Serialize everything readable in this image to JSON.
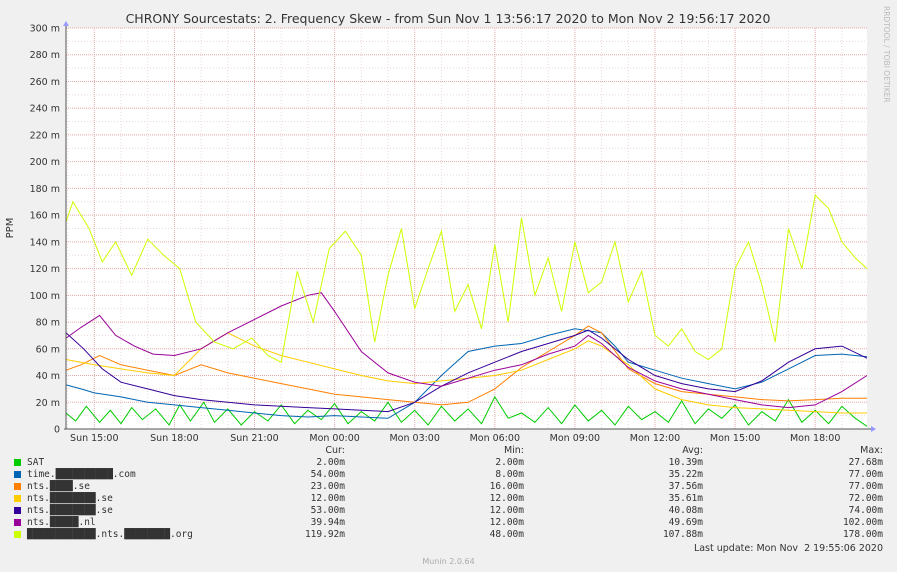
{
  "chart_data": {
    "type": "line",
    "title": "CHRONY Sourcestats: 2. Frequency Skew - from Sun Nov  1 13:56:17 2020 to Mon Nov  2 19:56:17 2020",
    "ylabel": "PPM",
    "watermark": "RRDTOOL / TOBI OETIKER",
    "ylim": [
      0,
      300
    ],
    "y_ticks": [
      "0",
      "20 m",
      "40 m",
      "60 m",
      "80 m",
      "100 m",
      "120 m",
      "140 m",
      "160 m",
      "180 m",
      "200 m",
      "220 m",
      "240 m",
      "260 m",
      "280 m",
      "300 m"
    ],
    "x_ticks": [
      "Sun 15:00",
      "Sun 18:00",
      "Sun 21:00",
      "Mon 00:00",
      "Mon 03:00",
      "Mon 06:00",
      "Mon 09:00",
      "Mon 12:00",
      "Mon 15:00",
      "Mon 18:00"
    ],
    "x_range_hours": [
      13.94,
      43.94
    ],
    "grid": true,
    "legend_columns": [
      "Cur:",
      "Min:",
      "Avg:",
      "Max:"
    ],
    "series": [
      {
        "name": "SAT",
        "color": "#00cc00",
        "cur": "2.00m",
        "min": "2.00m",
        "avg": "10.39m",
        "max": "27.68m",
        "points": [
          [
            13.94,
            12
          ],
          [
            14.3,
            6
          ],
          [
            14.7,
            17
          ],
          [
            15.2,
            5
          ],
          [
            15.6,
            14
          ],
          [
            16.0,
            4
          ],
          [
            16.4,
            16
          ],
          [
            16.8,
            7
          ],
          [
            17.3,
            15
          ],
          [
            17.8,
            3
          ],
          [
            18.2,
            18
          ],
          [
            18.6,
            6
          ],
          [
            19.1,
            20
          ],
          [
            19.5,
            5
          ],
          [
            20.0,
            15
          ],
          [
            20.5,
            3
          ],
          [
            21.0,
            13
          ],
          [
            21.5,
            6
          ],
          [
            22.0,
            18
          ],
          [
            22.5,
            4
          ],
          [
            23.0,
            14
          ],
          [
            23.5,
            7
          ],
          [
            24.0,
            19
          ],
          [
            24.5,
            4
          ],
          [
            25.0,
            13
          ],
          [
            25.5,
            6
          ],
          [
            26.0,
            20
          ],
          [
            26.5,
            5
          ],
          [
            27.0,
            14
          ],
          [
            27.5,
            3
          ],
          [
            28.0,
            17
          ],
          [
            28.5,
            6
          ],
          [
            29.0,
            15
          ],
          [
            29.5,
            4
          ],
          [
            30.0,
            24
          ],
          [
            30.5,
            8
          ],
          [
            31.0,
            12
          ],
          [
            31.5,
            5
          ],
          [
            32.0,
            16
          ],
          [
            32.5,
            4
          ],
          [
            33.0,
            18
          ],
          [
            33.5,
            6
          ],
          [
            34.0,
            14
          ],
          [
            34.5,
            3
          ],
          [
            35.0,
            17
          ],
          [
            35.5,
            7
          ],
          [
            36.0,
            13
          ],
          [
            36.5,
            5
          ],
          [
            37.0,
            21
          ],
          [
            37.5,
            4
          ],
          [
            38.0,
            15
          ],
          [
            38.5,
            8
          ],
          [
            39.0,
            18
          ],
          [
            39.5,
            3
          ],
          [
            40.0,
            13
          ],
          [
            40.5,
            6
          ],
          [
            41.0,
            22
          ],
          [
            41.5,
            5
          ],
          [
            42.0,
            14
          ],
          [
            42.5,
            4
          ],
          [
            43.0,
            17
          ],
          [
            43.5,
            8
          ],
          [
            43.94,
            2
          ]
        ]
      },
      {
        "name": "time.██████████.com",
        "color": "#0066b3",
        "cur": "54.00m",
        "min": "8.00m",
        "avg": "35.22m",
        "max": "77.00m",
        "points": [
          [
            13.94,
            33
          ],
          [
            14.5,
            30
          ],
          [
            15,
            27
          ],
          [
            16,
            24
          ],
          [
            17,
            20
          ],
          [
            18,
            18
          ],
          [
            19,
            16
          ],
          [
            20,
            14
          ],
          [
            21,
            12
          ],
          [
            22,
            10
          ],
          [
            23,
            9
          ],
          [
            24,
            10
          ],
          [
            25,
            9
          ],
          [
            26,
            8
          ],
          [
            27,
            20
          ],
          [
            28,
            40
          ],
          [
            29,
            58
          ],
          [
            30,
            62
          ],
          [
            31,
            64
          ],
          [
            32,
            70
          ],
          [
            33,
            75
          ],
          [
            34,
            72
          ],
          [
            34.5,
            62
          ],
          [
            35,
            50
          ],
          [
            36,
            44
          ],
          [
            37,
            38
          ],
          [
            38,
            34
          ],
          [
            39,
            30
          ],
          [
            40,
            35
          ],
          [
            41,
            45
          ],
          [
            42,
            55
          ],
          [
            43,
            56
          ],
          [
            43.94,
            54
          ]
        ]
      },
      {
        "name": "nts.████.se",
        "color": "#ff8000",
        "cur": "23.00m",
        "min": "16.00m",
        "avg": "37.56m",
        "max": "77.00m",
        "points": [
          [
            13.94,
            44
          ],
          [
            14.5,
            48
          ],
          [
            15.2,
            55
          ],
          [
            16,
            48
          ],
          [
            17,
            44
          ],
          [
            18,
            40
          ],
          [
            19,
            48
          ],
          [
            20,
            42
          ],
          [
            21,
            38
          ],
          [
            22,
            34
          ],
          [
            23,
            30
          ],
          [
            24,
            26
          ],
          [
            25,
            24
          ],
          [
            26,
            22
          ],
          [
            27,
            20
          ],
          [
            28,
            18
          ],
          [
            29,
            20
          ],
          [
            30,
            30
          ],
          [
            31,
            46
          ],
          [
            32,
            58
          ],
          [
            33,
            70
          ],
          [
            33.5,
            77
          ],
          [
            34,
            72
          ],
          [
            35,
            45
          ],
          [
            36,
            34
          ],
          [
            37,
            28
          ],
          [
            38,
            26
          ],
          [
            39,
            24
          ],
          [
            40,
            22
          ],
          [
            41,
            21
          ],
          [
            42,
            22
          ],
          [
            43,
            23
          ],
          [
            43.94,
            23
          ]
        ]
      },
      {
        "name": "nts.████████.se",
        "color": "#ffcc00",
        "cur": "12.00m",
        "min": "12.00m",
        "avg": "35.61m",
        "max": "72.00m",
        "points": [
          [
            13.94,
            52
          ],
          [
            15,
            48
          ],
          [
            16,
            45
          ],
          [
            17,
            42
          ],
          [
            18,
            40
          ],
          [
            19,
            60
          ],
          [
            20,
            72
          ],
          [
            21,
            62
          ],
          [
            22,
            55
          ],
          [
            23,
            50
          ],
          [
            24,
            45
          ],
          [
            25,
            40
          ],
          [
            26,
            36
          ],
          [
            27,
            34
          ],
          [
            28,
            36
          ],
          [
            29,
            38
          ],
          [
            30,
            40
          ],
          [
            31,
            44
          ],
          [
            32,
            52
          ],
          [
            33,
            60
          ],
          [
            33.5,
            66
          ],
          [
            34,
            62
          ],
          [
            35,
            48
          ],
          [
            36,
            30
          ],
          [
            37,
            22
          ],
          [
            38,
            18
          ],
          [
            39,
            16
          ],
          [
            40,
            15
          ],
          [
            41,
            14
          ],
          [
            42,
            13
          ],
          [
            43,
            12
          ],
          [
            43.94,
            12
          ]
        ]
      },
      {
        "name": "nts.████████.se",
        "color": "#330099",
        "cur": "53.00m",
        "min": "12.00m",
        "avg": "40.08m",
        "max": "74.00m",
        "points": [
          [
            13.94,
            72
          ],
          [
            14.6,
            60
          ],
          [
            15.3,
            45
          ],
          [
            16,
            35
          ],
          [
            17,
            30
          ],
          [
            18,
            25
          ],
          [
            19,
            22
          ],
          [
            20,
            20
          ],
          [
            21,
            18
          ],
          [
            22,
            17
          ],
          [
            23,
            16
          ],
          [
            24,
            15
          ],
          [
            25,
            14
          ],
          [
            26,
            13
          ],
          [
            27,
            20
          ],
          [
            28,
            32
          ],
          [
            29,
            42
          ],
          [
            30,
            50
          ],
          [
            31,
            58
          ],
          [
            32,
            64
          ],
          [
            33,
            70
          ],
          [
            33.5,
            74
          ],
          [
            34,
            68
          ],
          [
            35,
            52
          ],
          [
            36,
            40
          ],
          [
            37,
            34
          ],
          [
            38,
            30
          ],
          [
            39,
            28
          ],
          [
            40,
            36
          ],
          [
            41,
            50
          ],
          [
            42,
            60
          ],
          [
            43,
            62
          ],
          [
            43.94,
            53
          ]
        ]
      },
      {
        "name": "nts.█████.nl",
        "color": "#990099",
        "cur": "39.94m",
        "min": "12.00m",
        "avg": "49.69m",
        "max": "102.00m",
        "points": [
          [
            13.94,
            68
          ],
          [
            14.5,
            76
          ],
          [
            15.2,
            85
          ],
          [
            15.8,
            70
          ],
          [
            16.5,
            62
          ],
          [
            17.2,
            56
          ],
          [
            18,
            55
          ],
          [
            19,
            60
          ],
          [
            20,
            72
          ],
          [
            21,
            82
          ],
          [
            22,
            92
          ],
          [
            23,
            100
          ],
          [
            23.5,
            102
          ],
          [
            24,
            88
          ],
          [
            25,
            58
          ],
          [
            26,
            42
          ],
          [
            27,
            35
          ],
          [
            28,
            32
          ],
          [
            29,
            38
          ],
          [
            30,
            44
          ],
          [
            31,
            48
          ],
          [
            32,
            56
          ],
          [
            33,
            62
          ],
          [
            33.5,
            70
          ],
          [
            34,
            64
          ],
          [
            35,
            46
          ],
          [
            36,
            36
          ],
          [
            37,
            30
          ],
          [
            38,
            26
          ],
          [
            39,
            22
          ],
          [
            40,
            18
          ],
          [
            41,
            16
          ],
          [
            42,
            18
          ],
          [
            43,
            28
          ],
          [
            43.94,
            40
          ]
        ]
      },
      {
        "name": "████████████.nts.████████.org",
        "color": "#ccff00",
        "cur": "119.92m",
        "min": "48.00m",
        "avg": "107.88m",
        "max": "178.00m",
        "points": [
          [
            13.94,
            155
          ],
          [
            14.2,
            170
          ],
          [
            14.8,
            150
          ],
          [
            15.3,
            125
          ],
          [
            15.8,
            140
          ],
          [
            16.4,
            115
          ],
          [
            17,
            142
          ],
          [
            17.6,
            130
          ],
          [
            18.2,
            120
          ],
          [
            18.8,
            80
          ],
          [
            19.5,
            65
          ],
          [
            20.2,
            60
          ],
          [
            20.9,
            68
          ],
          [
            21.5,
            55
          ],
          [
            22,
            50
          ],
          [
            22.6,
            118
          ],
          [
            23.2,
            80
          ],
          [
            23.8,
            135
          ],
          [
            24.4,
            148
          ],
          [
            25,
            130
          ],
          [
            25.5,
            65
          ],
          [
            26,
            115
          ],
          [
            26.5,
            150
          ],
          [
            27,
            90
          ],
          [
            27.5,
            120
          ],
          [
            28,
            148
          ],
          [
            28.5,
            88
          ],
          [
            29,
            108
          ],
          [
            29.5,
            75
          ],
          [
            30,
            138
          ],
          [
            30.5,
            80
          ],
          [
            31,
            158
          ],
          [
            31.5,
            100
          ],
          [
            32,
            128
          ],
          [
            32.5,
            88
          ],
          [
            33,
            140
          ],
          [
            33.5,
            102
          ],
          [
            34,
            110
          ],
          [
            34.5,
            140
          ],
          [
            35,
            95
          ],
          [
            35.5,
            118
          ],
          [
            36,
            70
          ],
          [
            36.5,
            62
          ],
          [
            37,
            75
          ],
          [
            37.5,
            58
          ],
          [
            38,
            52
          ],
          [
            38.5,
            60
          ],
          [
            39,
            120
          ],
          [
            39.5,
            140
          ],
          [
            40,
            108
          ],
          [
            40.5,
            65
          ],
          [
            41,
            150
          ],
          [
            41.5,
            120
          ],
          [
            42,
            175
          ],
          [
            42.5,
            165
          ],
          [
            43,
            140
          ],
          [
            43.5,
            128
          ],
          [
            43.94,
            120
          ]
        ]
      }
    ]
  },
  "legend": [
    {
      "name": "SAT",
      "color": "#00cc00",
      "cur": "2.00m",
      "min": "2.00m",
      "avg": "10.39m",
      "max": "27.68m"
    },
    {
      "name": "time.██████████.com",
      "color": "#0066b3",
      "cur": "54.00m",
      "min": "8.00m",
      "avg": "35.22m",
      "max": "77.00m"
    },
    {
      "name": "nts.████.se",
      "color": "#ff8000",
      "cur": "23.00m",
      "min": "16.00m",
      "avg": "37.56m",
      "max": "77.00m"
    },
    {
      "name": "nts.████████.se",
      "color": "#ffcc00",
      "cur": "12.00m",
      "min": "12.00m",
      "avg": "35.61m",
      "max": "72.00m"
    },
    {
      "name": "nts.████████.se",
      "color": "#330099",
      "cur": "53.00m",
      "min": "12.00m",
      "avg": "40.08m",
      "max": "74.00m"
    },
    {
      "name": "nts.█████.nl",
      "color": "#990099",
      "cur": "39.94m",
      "min": "12.00m",
      "avg": "49.69m",
      "max": "102.00m"
    },
    {
      "name": "████████████.nts.████████.org",
      "color": "#ccff00",
      "cur": "119.92m",
      "min": "48.00m",
      "avg": "107.88m",
      "max": "178.00m"
    }
  ],
  "last_update": "Last update: Mon Nov  2 19:55:06 2020",
  "footer": "Munin 2.0.64"
}
